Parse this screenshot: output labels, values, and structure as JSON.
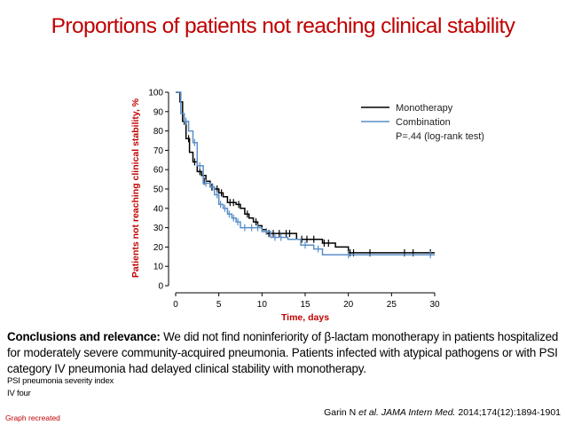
{
  "title": "Proportions of patients not reaching clinical stability",
  "chart_data": {
    "type": "line",
    "subtype": "kaplan-meier step curve with censor marks",
    "xlabel": "Time, days",
    "ylabel": "Patients not reaching clinical stability, %",
    "xlim": [
      0,
      30
    ],
    "ylim": [
      0,
      100
    ],
    "xticks": [
      0,
      5,
      10,
      15,
      20,
      25,
      30
    ],
    "yticks": [
      0,
      10,
      20,
      30,
      40,
      50,
      60,
      70,
      80,
      90,
      100
    ],
    "legend_position": "top-right",
    "legend": [
      "Monotherapy",
      "Combination"
    ],
    "annotation": "P=.44 (log-rank test)",
    "series": [
      {
        "name": "Monotherapy",
        "color": "#000000",
        "steps": [
          [
            0,
            100
          ],
          [
            0.5,
            100
          ],
          [
            0.5,
            95
          ],
          [
            0.8,
            95
          ],
          [
            0.8,
            85
          ],
          [
            1.2,
            85
          ],
          [
            1.2,
            76
          ],
          [
            1.6,
            76
          ],
          [
            1.6,
            69
          ],
          [
            2.0,
            69
          ],
          [
            2.0,
            64
          ],
          [
            2.5,
            64
          ],
          [
            2.5,
            59
          ],
          [
            3.0,
            59
          ],
          [
            3.0,
            57
          ],
          [
            3.5,
            57
          ],
          [
            3.5,
            54
          ],
          [
            4.0,
            54
          ],
          [
            4.0,
            51
          ],
          [
            4.5,
            51
          ],
          [
            4.5,
            50
          ],
          [
            5.0,
            50
          ],
          [
            5.0,
            48
          ],
          [
            5.5,
            48
          ],
          [
            5.5,
            46
          ],
          [
            6.0,
            46
          ],
          [
            6.0,
            43
          ],
          [
            7.0,
            43
          ],
          [
            7.0,
            42
          ],
          [
            7.5,
            42
          ],
          [
            7.5,
            40
          ],
          [
            8.0,
            40
          ],
          [
            8.0,
            37
          ],
          [
            8.5,
            37
          ],
          [
            8.5,
            35
          ],
          [
            9.0,
            35
          ],
          [
            9.0,
            33
          ],
          [
            9.5,
            33
          ],
          [
            9.5,
            31
          ],
          [
            10.0,
            31
          ],
          [
            10.0,
            29
          ],
          [
            10.5,
            29
          ],
          [
            10.5,
            27
          ],
          [
            14.0,
            27
          ],
          [
            14.0,
            24
          ],
          [
            17.0,
            24
          ],
          [
            17.0,
            22
          ],
          [
            18.5,
            22
          ],
          [
            18.5,
            20
          ],
          [
            20.0,
            20
          ],
          [
            20.0,
            17
          ],
          [
            30.0,
            17
          ]
        ],
        "censor_marks": [
          [
            1.0,
            85
          ],
          [
            1.5,
            76
          ],
          [
            2.2,
            64
          ],
          [
            2.8,
            59
          ],
          [
            3.3,
            54
          ],
          [
            4.2,
            51
          ],
          [
            4.8,
            50
          ],
          [
            5.3,
            48
          ],
          [
            6.3,
            43
          ],
          [
            6.7,
            43
          ],
          [
            7.3,
            42
          ],
          [
            8.3,
            37
          ],
          [
            9.3,
            33
          ],
          [
            10.8,
            27
          ],
          [
            11.3,
            27
          ],
          [
            12.0,
            27
          ],
          [
            12.8,
            27
          ],
          [
            13.2,
            27
          ],
          [
            14.6,
            24
          ],
          [
            15.2,
            24
          ],
          [
            16.0,
            24
          ],
          [
            17.2,
            22
          ],
          [
            17.7,
            22
          ],
          [
            20.2,
            17
          ],
          [
            20.6,
            17
          ],
          [
            22.5,
            17
          ],
          [
            26.5,
            17
          ],
          [
            27.5,
            17
          ],
          [
            29.5,
            17
          ]
        ]
      },
      {
        "name": "Combination",
        "color": "#5b8fc7",
        "steps": [
          [
            0,
            100
          ],
          [
            0.6,
            100
          ],
          [
            0.6,
            89
          ],
          [
            1.0,
            89
          ],
          [
            1.0,
            85
          ],
          [
            1.5,
            85
          ],
          [
            1.5,
            80
          ],
          [
            2.0,
            80
          ],
          [
            2.0,
            74
          ],
          [
            2.5,
            74
          ],
          [
            2.5,
            62
          ],
          [
            3.2,
            62
          ],
          [
            3.2,
            53
          ],
          [
            4.0,
            53
          ],
          [
            4.0,
            51
          ],
          [
            4.5,
            51
          ],
          [
            4.5,
            47
          ],
          [
            5.0,
            47
          ],
          [
            5.0,
            42
          ],
          [
            5.5,
            42
          ],
          [
            5.5,
            40
          ],
          [
            6.0,
            40
          ],
          [
            6.0,
            37
          ],
          [
            6.5,
            37
          ],
          [
            6.5,
            35
          ],
          [
            7.0,
            35
          ],
          [
            7.0,
            33
          ],
          [
            7.5,
            33
          ],
          [
            7.5,
            30
          ],
          [
            10.0,
            30
          ],
          [
            10.0,
            28
          ],
          [
            11.0,
            28
          ],
          [
            11.0,
            25
          ],
          [
            13.0,
            25
          ],
          [
            13.0,
            24
          ],
          [
            14.5,
            24
          ],
          [
            14.5,
            21
          ],
          [
            16.0,
            21
          ],
          [
            16.0,
            19
          ],
          [
            17.0,
            19
          ],
          [
            17.0,
            16
          ],
          [
            30.0,
            16
          ]
        ],
        "censor_marks": [
          [
            1.2,
            85
          ],
          [
            2.2,
            74
          ],
          [
            2.8,
            62
          ],
          [
            3.5,
            53
          ],
          [
            4.3,
            51
          ],
          [
            4.8,
            47
          ],
          [
            5.2,
            42
          ],
          [
            5.7,
            40
          ],
          [
            6.2,
            37
          ],
          [
            6.7,
            35
          ],
          [
            7.2,
            33
          ],
          [
            8.0,
            30
          ],
          [
            8.8,
            30
          ],
          [
            9.5,
            30
          ],
          [
            10.5,
            28
          ],
          [
            11.5,
            25
          ],
          [
            12.2,
            25
          ],
          [
            15.0,
            21
          ],
          [
            16.5,
            19
          ],
          [
            20.0,
            16
          ],
          [
            29.5,
            16
          ]
        ]
      }
    ]
  },
  "conclusion": {
    "label": "Conclusions and relevance:",
    "text": " We did not find noninferiority of β-lactam monotherapy in patients hospitalized for moderately severe community-acquired pneumonia. Patients infected with atypical pathogens or with PSI category IV pneumonia had delayed clinical stability with monotherapy."
  },
  "footnotes": {
    "psi": "PSI  pneumonia severity index",
    "iv": "IV  four"
  },
  "citation": {
    "authors": "Garin N ",
    "etal": "et al. JAMA Intern Med.",
    "ref": " 2014;174(12):1894-1901"
  },
  "recreated": "Graph recreated"
}
